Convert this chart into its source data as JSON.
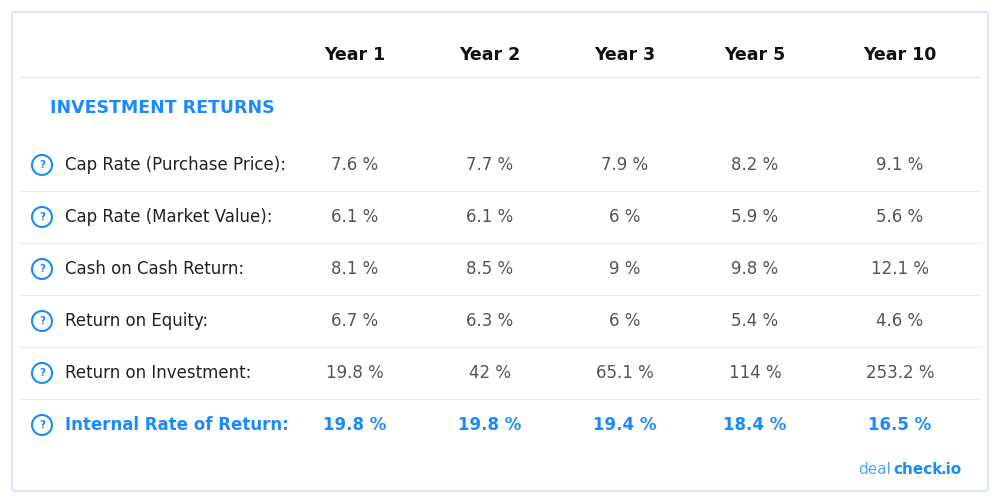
{
  "title": "INVESTMENT RETURNS",
  "title_color": "#1a8aff",
  "columns": [
    "Year 1",
    "Year 2",
    "Year 3",
    "Year 5",
    "Year 10"
  ],
  "rows": [
    {
      "label": "Cap Rate (Purchase Price):",
      "values": [
        "7.6 %",
        "7.7 %",
        "7.9 %",
        "8.2 %",
        "9.1 %"
      ],
      "label_color": "#222222",
      "value_color": "#555555",
      "is_highlighted": false
    },
    {
      "label": "Cap Rate (Market Value):",
      "values": [
        "6.1 %",
        "6.1 %",
        "6 %",
        "5.9 %",
        "5.6 %"
      ],
      "label_color": "#222222",
      "value_color": "#555555",
      "is_highlighted": false
    },
    {
      "label": "Cash on Cash Return:",
      "values": [
        "8.1 %",
        "8.5 %",
        "9 %",
        "9.8 %",
        "12.1 %"
      ],
      "label_color": "#222222",
      "value_color": "#555555",
      "is_highlighted": false
    },
    {
      "label": "Return on Equity:",
      "values": [
        "6.7 %",
        "6.3 %",
        "6 %",
        "5.4 %",
        "4.6 %"
      ],
      "label_color": "#222222",
      "value_color": "#555555",
      "is_highlighted": false
    },
    {
      "label": "Return on Investment:",
      "values": [
        "19.8 %",
        "42 %",
        "65.1 %",
        "114 %",
        "253.2 %"
      ],
      "label_color": "#222222",
      "value_color": "#555555",
      "is_highlighted": false
    },
    {
      "label": "Internal Rate of Return:",
      "values": [
        "19.8 %",
        "19.8 %",
        "19.4 %",
        "18.4 %",
        "16.5 %"
      ],
      "label_color": "#1a8aff",
      "value_color": "#1a8aff",
      "is_highlighted": true
    }
  ],
  "background_color": "#ffffff",
  "border_color": "#ccddee",
  "separator_color": "#e0eaf0",
  "icon_color": "#1a8aff",
  "dealcheck_deal_color": "#4da6ff",
  "dealcheck_check_color": "#1a8aff",
  "header_color": "#111111",
  "header_fontsize": 12.5,
  "label_fontsize": 12,
  "value_fontsize": 12,
  "title_fontsize": 12.5,
  "fig_width": 10.0,
  "fig_height": 5.0
}
